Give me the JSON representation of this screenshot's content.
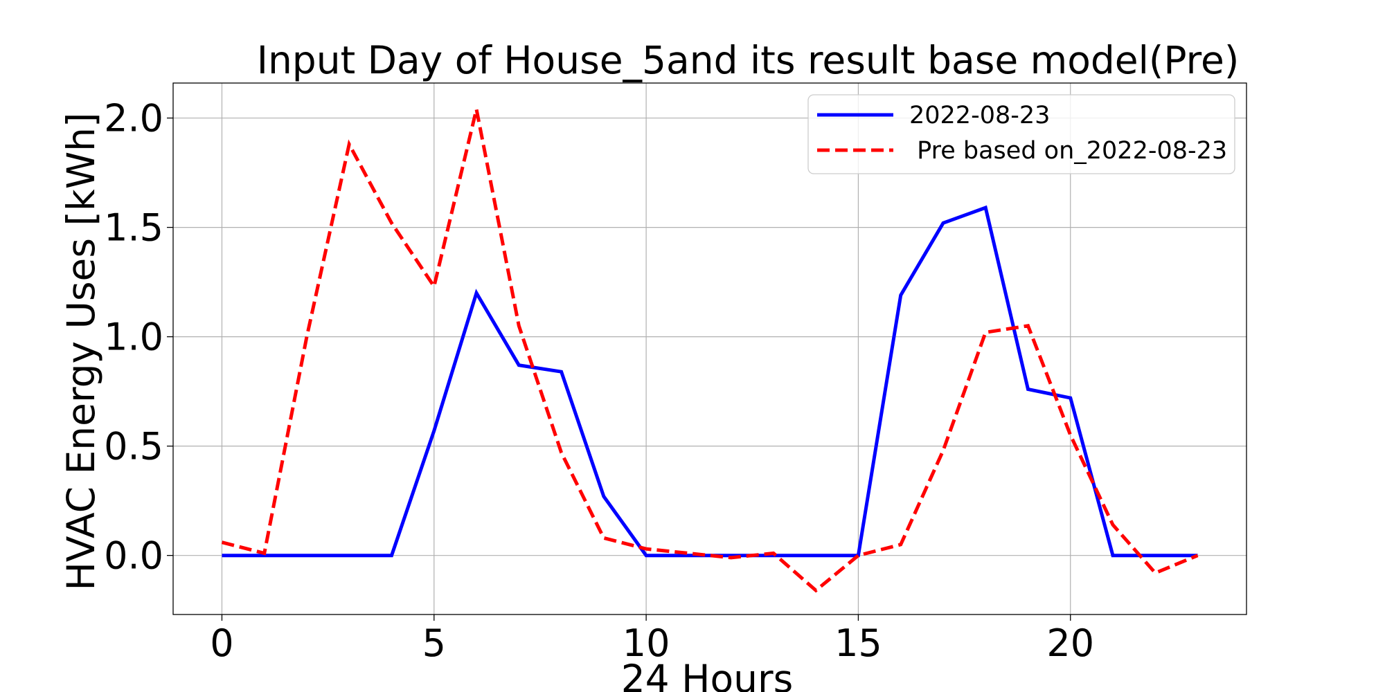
{
  "chart_data": {
    "type": "line",
    "title": "Input Day of House_5and its result base model(Pre)",
    "xlabel": "24 Hours",
    "ylabel": "HVAC Energy Uses [kWh]",
    "xlim": [
      -1.15,
      24.15
    ],
    "ylim": [
      -0.27,
      2.16
    ],
    "xticks": [
      0,
      5,
      10,
      15,
      20
    ],
    "yticks": [
      0.0,
      0.5,
      1.0,
      1.5,
      2.0
    ],
    "xtick_labels": [
      "0",
      "5",
      "10",
      "15",
      "20"
    ],
    "ytick_labels": [
      "0.0",
      "0.5",
      "1.0",
      "1.5",
      "2.0"
    ],
    "grid": true,
    "legend_position": "upper right",
    "x": [
      0,
      1,
      2,
      3,
      4,
      5,
      6,
      7,
      8,
      9,
      10,
      11,
      12,
      13,
      14,
      15,
      16,
      17,
      18,
      19,
      20,
      21,
      22,
      23
    ],
    "series": [
      {
        "name": "2022-08-23",
        "color": "#0000ff",
        "style": "solid",
        "values": [
          0,
          0,
          0,
          0,
          0,
          0.57,
          1.2,
          0.87,
          0.84,
          0.27,
          0,
          0,
          0,
          0,
          0,
          0,
          1.19,
          1.52,
          1.59,
          0.76,
          0.72,
          0,
          0,
          0
        ]
      },
      {
        "name": " Pre based on_2022-08-23",
        "color": "#ff0000",
        "style": "dashed",
        "values": [
          0.06,
          0.01,
          1.0,
          1.88,
          1.52,
          1.23,
          2.04,
          1.05,
          0.47,
          0.08,
          0.03,
          0.01,
          -0.01,
          0.01,
          -0.16,
          0,
          0.05,
          0.48,
          1.02,
          1.05,
          0.55,
          0.14,
          -0.08,
          0
        ]
      }
    ]
  }
}
